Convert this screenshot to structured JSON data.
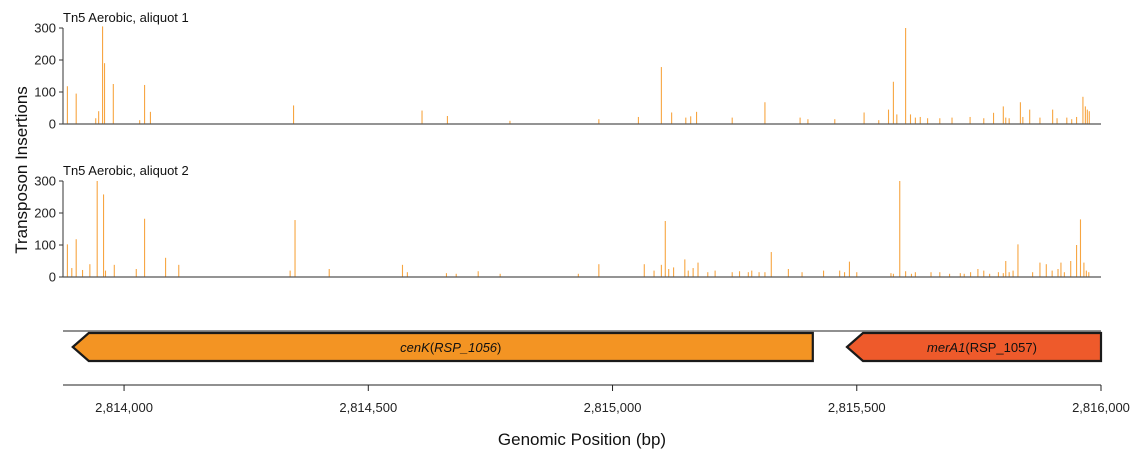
{
  "chart_data": {
    "type": "bar",
    "y_axis_label": "Transposon Insertions",
    "x_axis_label": "Genomic Position (bp)",
    "xlim": [
      2813875,
      2816000
    ],
    "x_ticks": [
      2814000,
      2814500,
      2815000,
      2815500,
      2816000
    ],
    "x_tick_labels": [
      "2,814,000",
      "2,814,500",
      "2,815,000",
      "2,815,500",
      "2,816,000"
    ],
    "bar_color": "#F7A541",
    "panels": [
      {
        "title": "Tn5 Aerobic, aliquot 1",
        "ylim": [
          0,
          300
        ],
        "y_ticks": [
          0,
          100,
          200,
          300
        ],
        "y_tick_labels": [
          "0",
          "100",
          "200",
          "300"
        ],
        "x": [
          2813884,
          2813902,
          2813942,
          2813948,
          2813956,
          2813960,
          2813978,
          2814032,
          2814042,
          2814054,
          2814347,
          2814610,
          2814662,
          2814790,
          2814972,
          2815053,
          2815100,
          2815121,
          2815150,
          2815160,
          2815172,
          2815245,
          2815312,
          2815384,
          2815400,
          2815455,
          2815515,
          2815545,
          2815565,
          2815575,
          2815582,
          2815600,
          2815610,
          2815620,
          2815630,
          2815645,
          2815670,
          2815695,
          2815732,
          2815760,
          2815780,
          2815800,
          2815805,
          2815812,
          2815835,
          2815840,
          2815854,
          2815875,
          2815901,
          2815910,
          2815930,
          2815940,
          2815950,
          2815963,
          2815968,
          2815972,
          2815976
        ],
        "values": [
          118,
          95,
          18,
          40,
          305,
          190,
          125,
          12,
          122,
          38,
          58,
          42,
          25,
          10,
          15,
          22,
          178,
          36,
          20,
          24,
          38,
          20,
          68,
          20,
          15,
          15,
          36,
          12,
          45,
          132,
          30,
          300,
          30,
          20,
          22,
          18,
          18,
          20,
          22,
          18,
          35,
          55,
          20,
          18,
          68,
          22,
          45,
          20,
          45,
          18,
          20,
          15,
          22,
          85,
          55,
          45,
          40
        ]
      },
      {
        "title": "Tn5 Aerobic, aliquot 2",
        "ylim": [
          0,
          300
        ],
        "y_ticks": [
          0,
          100,
          200,
          300
        ],
        "y_tick_labels": [
          "0",
          "100",
          "200",
          "300"
        ],
        "x": [
          2813884,
          2813893,
          2813902,
          2813915,
          2813930,
          2813945,
          2813958,
          2813962,
          2813980,
          2814025,
          2814042,
          2814085,
          2814112,
          2814340,
          2814350,
          2814420,
          2814570,
          2814580,
          2814660,
          2814680,
          2814725,
          2814770,
          2814930,
          2814972,
          2815065,
          2815085,
          2815100,
          2815108,
          2815115,
          2815125,
          2815148,
          2815155,
          2815165,
          2815175,
          2815195,
          2815210,
          2815245,
          2815260,
          2815278,
          2815285,
          2815300,
          2815312,
          2815325,
          2815360,
          2815388,
          2815432,
          2815465,
          2815475,
          2815485,
          2815500,
          2815570,
          2815575,
          2815588,
          2815600,
          2815612,
          2815620,
          2815652,
          2815670,
          2815690,
          2815712,
          2815720,
          2815733,
          2815748,
          2815760,
          2815772,
          2815790,
          2815800,
          2815805,
          2815812,
          2815820,
          2815830,
          2815860,
          2815875,
          2815888,
          2815900,
          2815912,
          2815918,
          2815925,
          2815938,
          2815950,
          2815958,
          2815965,
          2815970,
          2815975
        ],
        "values": [
          102,
          28,
          118,
          22,
          40,
          300,
          258,
          20,
          38,
          25,
          182,
          60,
          38,
          20,
          178,
          25,
          38,
          15,
          12,
          10,
          18,
          10,
          10,
          40,
          40,
          20,
          38,
          175,
          25,
          30,
          55,
          20,
          28,
          45,
          15,
          20,
          15,
          18,
          15,
          20,
          15,
          15,
          78,
          25,
          15,
          20,
          20,
          15,
          48,
          15,
          12,
          10,
          300,
          18,
          10,
          15,
          15,
          15,
          10,
          12,
          10,
          15,
          25,
          20,
          10,
          15,
          12,
          50,
          15,
          20,
          102,
          15,
          45,
          40,
          20,
          25,
          45,
          15,
          50,
          100,
          180,
          45,
          20,
          15
        ]
      }
    ],
    "genes": [
      {
        "start": 2813895,
        "end": 2815410,
        "strand": "-",
        "color": "#F39423",
        "label_main": "cenK",
        "label_paren": "RSP_1056",
        "paren_italic": true
      },
      {
        "start": 2815480,
        "end": 2816000,
        "strand": "-",
        "color": "#EE5A2B",
        "label_main": "merA1",
        "label_paren": "RSP_1057",
        "paren_italic": false
      }
    ]
  }
}
